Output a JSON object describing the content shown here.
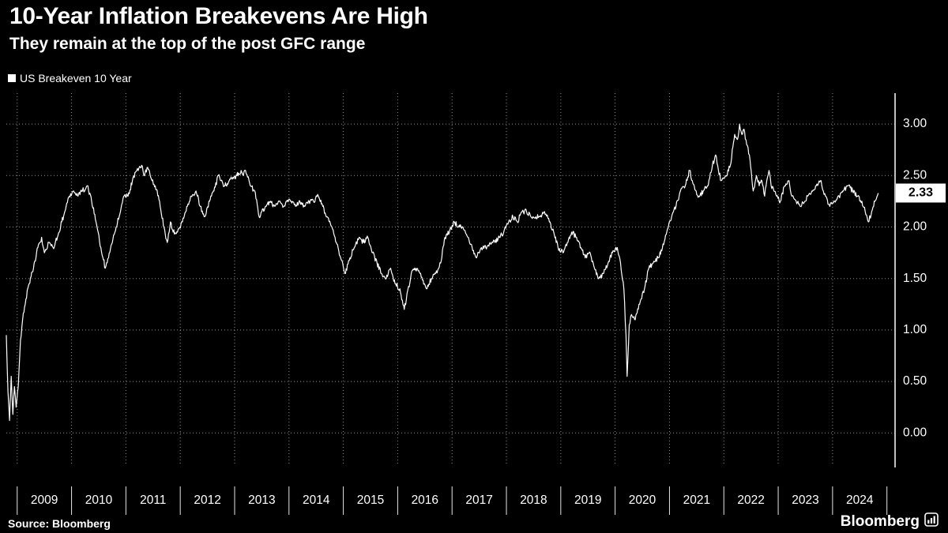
{
  "header": {
    "title": "10-Year Inflation Breakevens Are High",
    "subtitle": "They remain at the top of the post GFC range"
  },
  "legend": {
    "label": "US Breakeven 10 Year"
  },
  "footer": {
    "source": "Source: Bloomberg",
    "logo": "Bloomberg"
  },
  "colors": {
    "background": "#000000",
    "line": "#ffffff",
    "grid": "#ffffff",
    "text": "#ffffff",
    "badge_bg": "#ffffff",
    "badge_text": "#000000"
  },
  "chart_data": {
    "type": "line",
    "title": "10-Year Inflation Breakevens Are High",
    "subtitle": "They remain at the top of the post GFC range",
    "xlabel": "",
    "ylabel": "",
    "legend_position": "top-left",
    "y_axis_position": "right",
    "grid": "dotted",
    "xlim": [
      2008.8,
      2025.15
    ],
    "ylim": [
      -0.32,
      3.3
    ],
    "y_ticks": [
      0.0,
      0.5,
      1.0,
      1.5,
      2.0,
      2.5,
      3.0
    ],
    "y_tick_labels": [
      "0.00",
      "0.50",
      "1.00",
      "1.50",
      "2.00",
      "2.50",
      "3.00"
    ],
    "x_tick_labels": [
      "2009",
      "2010",
      "2011",
      "2012",
      "2013",
      "2014",
      "2015",
      "2016",
      "2017",
      "2018",
      "2019",
      "2020",
      "2021",
      "2022",
      "2023",
      "2024"
    ],
    "last_value": 2.33,
    "last_value_label": "2.33",
    "series": [
      {
        "name": "US Breakeven 10 Year",
        "points": [
          [
            2008.8,
            0.95
          ],
          [
            2008.83,
            0.4
          ],
          [
            2008.86,
            0.12
          ],
          [
            2008.89,
            0.55
          ],
          [
            2008.92,
            0.18
          ],
          [
            2008.95,
            0.45
          ],
          [
            2008.98,
            0.25
          ],
          [
            2009.02,
            0.45
          ],
          [
            2009.06,
            0.9
          ],
          [
            2009.1,
            1.1
          ],
          [
            2009.16,
            1.3
          ],
          [
            2009.22,
            1.45
          ],
          [
            2009.3,
            1.6
          ],
          [
            2009.38,
            1.8
          ],
          [
            2009.45,
            1.9
          ],
          [
            2009.5,
            1.75
          ],
          [
            2009.58,
            1.85
          ],
          [
            2009.66,
            1.8
          ],
          [
            2009.74,
            1.9
          ],
          [
            2009.82,
            2.05
          ],
          [
            2009.9,
            2.2
          ],
          [
            2009.96,
            2.3
          ],
          [
            2010.04,
            2.35
          ],
          [
            2010.12,
            2.3
          ],
          [
            2010.2,
            2.35
          ],
          [
            2010.29,
            2.4
          ],
          [
            2010.37,
            2.25
          ],
          [
            2010.45,
            2.05
          ],
          [
            2010.54,
            1.8
          ],
          [
            2010.62,
            1.6
          ],
          [
            2010.68,
            1.7
          ],
          [
            2010.75,
            1.85
          ],
          [
            2010.82,
            2.0
          ],
          [
            2010.9,
            2.15
          ],
          [
            2010.96,
            2.3
          ],
          [
            2011.04,
            2.3
          ],
          [
            2011.12,
            2.45
          ],
          [
            2011.2,
            2.55
          ],
          [
            2011.29,
            2.6
          ],
          [
            2011.33,
            2.5
          ],
          [
            2011.4,
            2.58
          ],
          [
            2011.48,
            2.45
          ],
          [
            2011.54,
            2.4
          ],
          [
            2011.62,
            2.25
          ],
          [
            2011.7,
            2.0
          ],
          [
            2011.76,
            1.85
          ],
          [
            2011.82,
            2.05
          ],
          [
            2011.87,
            1.95
          ],
          [
            2011.95,
            1.95
          ],
          [
            2012.04,
            2.05
          ],
          [
            2012.12,
            2.2
          ],
          [
            2012.2,
            2.3
          ],
          [
            2012.29,
            2.35
          ],
          [
            2012.37,
            2.2
          ],
          [
            2012.45,
            2.1
          ],
          [
            2012.54,
            2.25
          ],
          [
            2012.62,
            2.35
          ],
          [
            2012.7,
            2.5
          ],
          [
            2012.75,
            2.45
          ],
          [
            2012.82,
            2.4
          ],
          [
            2012.9,
            2.45
          ],
          [
            2013.04,
            2.5
          ],
          [
            2013.12,
            2.55
          ],
          [
            2013.16,
            2.5
          ],
          [
            2013.2,
            2.55
          ],
          [
            2013.29,
            2.4
          ],
          [
            2013.37,
            2.35
          ],
          [
            2013.45,
            2.1
          ],
          [
            2013.5,
            2.15
          ],
          [
            2013.58,
            2.2
          ],
          [
            2013.66,
            2.25
          ],
          [
            2013.74,
            2.2
          ],
          [
            2013.82,
            2.25
          ],
          [
            2013.9,
            2.2
          ],
          [
            2013.96,
            2.25
          ],
          [
            2014.04,
            2.25
          ],
          [
            2014.12,
            2.2
          ],
          [
            2014.2,
            2.25
          ],
          [
            2014.29,
            2.2
          ],
          [
            2014.37,
            2.25
          ],
          [
            2014.45,
            2.25
          ],
          [
            2014.54,
            2.3
          ],
          [
            2014.62,
            2.2
          ],
          [
            2014.7,
            2.1
          ],
          [
            2014.79,
            2.0
          ],
          [
            2014.87,
            1.85
          ],
          [
            2014.95,
            1.7
          ],
          [
            2015.04,
            1.55
          ],
          [
            2015.12,
            1.7
          ],
          [
            2015.2,
            1.8
          ],
          [
            2015.29,
            1.9
          ],
          [
            2015.37,
            1.85
          ],
          [
            2015.45,
            1.9
          ],
          [
            2015.54,
            1.75
          ],
          [
            2015.62,
            1.65
          ],
          [
            2015.7,
            1.55
          ],
          [
            2015.79,
            1.5
          ],
          [
            2015.87,
            1.6
          ],
          [
            2015.95,
            1.45
          ],
          [
            2016.04,
            1.4
          ],
          [
            2016.12,
            1.2
          ],
          [
            2016.16,
            1.3
          ],
          [
            2016.25,
            1.55
          ],
          [
            2016.33,
            1.6
          ],
          [
            2016.41,
            1.55
          ],
          [
            2016.49,
            1.45
          ],
          [
            2016.54,
            1.4
          ],
          [
            2016.62,
            1.5
          ],
          [
            2016.7,
            1.55
          ],
          [
            2016.79,
            1.65
          ],
          [
            2016.87,
            1.9
          ],
          [
            2016.95,
            1.95
          ],
          [
            2017.04,
            2.05
          ],
          [
            2017.12,
            2.0
          ],
          [
            2017.2,
            2.0
          ],
          [
            2017.29,
            1.9
          ],
          [
            2017.37,
            1.8
          ],
          [
            2017.45,
            1.7
          ],
          [
            2017.54,
            1.8
          ],
          [
            2017.62,
            1.8
          ],
          [
            2017.7,
            1.85
          ],
          [
            2017.79,
            1.85
          ],
          [
            2017.87,
            1.9
          ],
          [
            2017.95,
            1.95
          ],
          [
            2018.04,
            2.05
          ],
          [
            2018.12,
            2.1
          ],
          [
            2018.2,
            2.05
          ],
          [
            2018.29,
            2.15
          ],
          [
            2018.37,
            2.15
          ],
          [
            2018.45,
            2.1
          ],
          [
            2018.54,
            2.1
          ],
          [
            2018.62,
            2.1
          ],
          [
            2018.7,
            2.15
          ],
          [
            2018.79,
            2.05
          ],
          [
            2018.87,
            1.95
          ],
          [
            2018.95,
            1.8
          ],
          [
            2019.04,
            1.75
          ],
          [
            2019.12,
            1.85
          ],
          [
            2019.2,
            1.95
          ],
          [
            2019.29,
            1.9
          ],
          [
            2019.37,
            1.8
          ],
          [
            2019.45,
            1.7
          ],
          [
            2019.54,
            1.75
          ],
          [
            2019.62,
            1.6
          ],
          [
            2019.7,
            1.5
          ],
          [
            2019.79,
            1.55
          ],
          [
            2019.87,
            1.65
          ],
          [
            2019.95,
            1.75
          ],
          [
            2020.04,
            1.8
          ],
          [
            2020.1,
            1.65
          ],
          [
            2020.16,
            1.4
          ],
          [
            2020.2,
            0.95
          ],
          [
            2020.22,
            0.55
          ],
          [
            2020.26,
            1.05
          ],
          [
            2020.3,
            1.15
          ],
          [
            2020.37,
            1.1
          ],
          [
            2020.45,
            1.25
          ],
          [
            2020.54,
            1.4
          ],
          [
            2020.62,
            1.6
          ],
          [
            2020.7,
            1.65
          ],
          [
            2020.79,
            1.7
          ],
          [
            2020.87,
            1.8
          ],
          [
            2020.95,
            1.95
          ],
          [
            2021.04,
            2.1
          ],
          [
            2021.12,
            2.2
          ],
          [
            2021.2,
            2.35
          ],
          [
            2021.29,
            2.4
          ],
          [
            2021.37,
            2.55
          ],
          [
            2021.42,
            2.45
          ],
          [
            2021.49,
            2.35
          ],
          [
            2021.54,
            2.3
          ],
          [
            2021.62,
            2.35
          ],
          [
            2021.7,
            2.4
          ],
          [
            2021.79,
            2.6
          ],
          [
            2021.85,
            2.7
          ],
          [
            2021.9,
            2.55
          ],
          [
            2021.95,
            2.45
          ],
          [
            2022.04,
            2.5
          ],
          [
            2022.12,
            2.6
          ],
          [
            2022.2,
            2.9
          ],
          [
            2022.25,
            2.85
          ],
          [
            2022.29,
            3.0
          ],
          [
            2022.33,
            2.9
          ],
          [
            2022.37,
            2.95
          ],
          [
            2022.42,
            2.8
          ],
          [
            2022.47,
            2.7
          ],
          [
            2022.54,
            2.35
          ],
          [
            2022.6,
            2.5
          ],
          [
            2022.65,
            2.4
          ],
          [
            2022.7,
            2.45
          ],
          [
            2022.75,
            2.3
          ],
          [
            2022.79,
            2.45
          ],
          [
            2022.83,
            2.55
          ],
          [
            2022.87,
            2.4
          ],
          [
            2022.92,
            2.35
          ],
          [
            2022.97,
            2.3
          ],
          [
            2023.04,
            2.25
          ],
          [
            2023.12,
            2.4
          ],
          [
            2023.2,
            2.45
          ],
          [
            2023.25,
            2.3
          ],
          [
            2023.33,
            2.25
          ],
          [
            2023.41,
            2.2
          ],
          [
            2023.49,
            2.25
          ],
          [
            2023.54,
            2.3
          ],
          [
            2023.62,
            2.35
          ],
          [
            2023.7,
            2.4
          ],
          [
            2023.79,
            2.45
          ],
          [
            2023.83,
            2.35
          ],
          [
            2023.87,
            2.3
          ],
          [
            2023.95,
            2.2
          ],
          [
            2024.04,
            2.25
          ],
          [
            2024.12,
            2.3
          ],
          [
            2024.2,
            2.35
          ],
          [
            2024.29,
            2.4
          ],
          [
            2024.37,
            2.35
          ],
          [
            2024.45,
            2.3
          ],
          [
            2024.54,
            2.25
          ],
          [
            2024.6,
            2.15
          ],
          [
            2024.66,
            2.05
          ],
          [
            2024.72,
            2.15
          ],
          [
            2024.78,
            2.25
          ],
          [
            2024.84,
            2.33
          ]
        ]
      }
    ]
  }
}
